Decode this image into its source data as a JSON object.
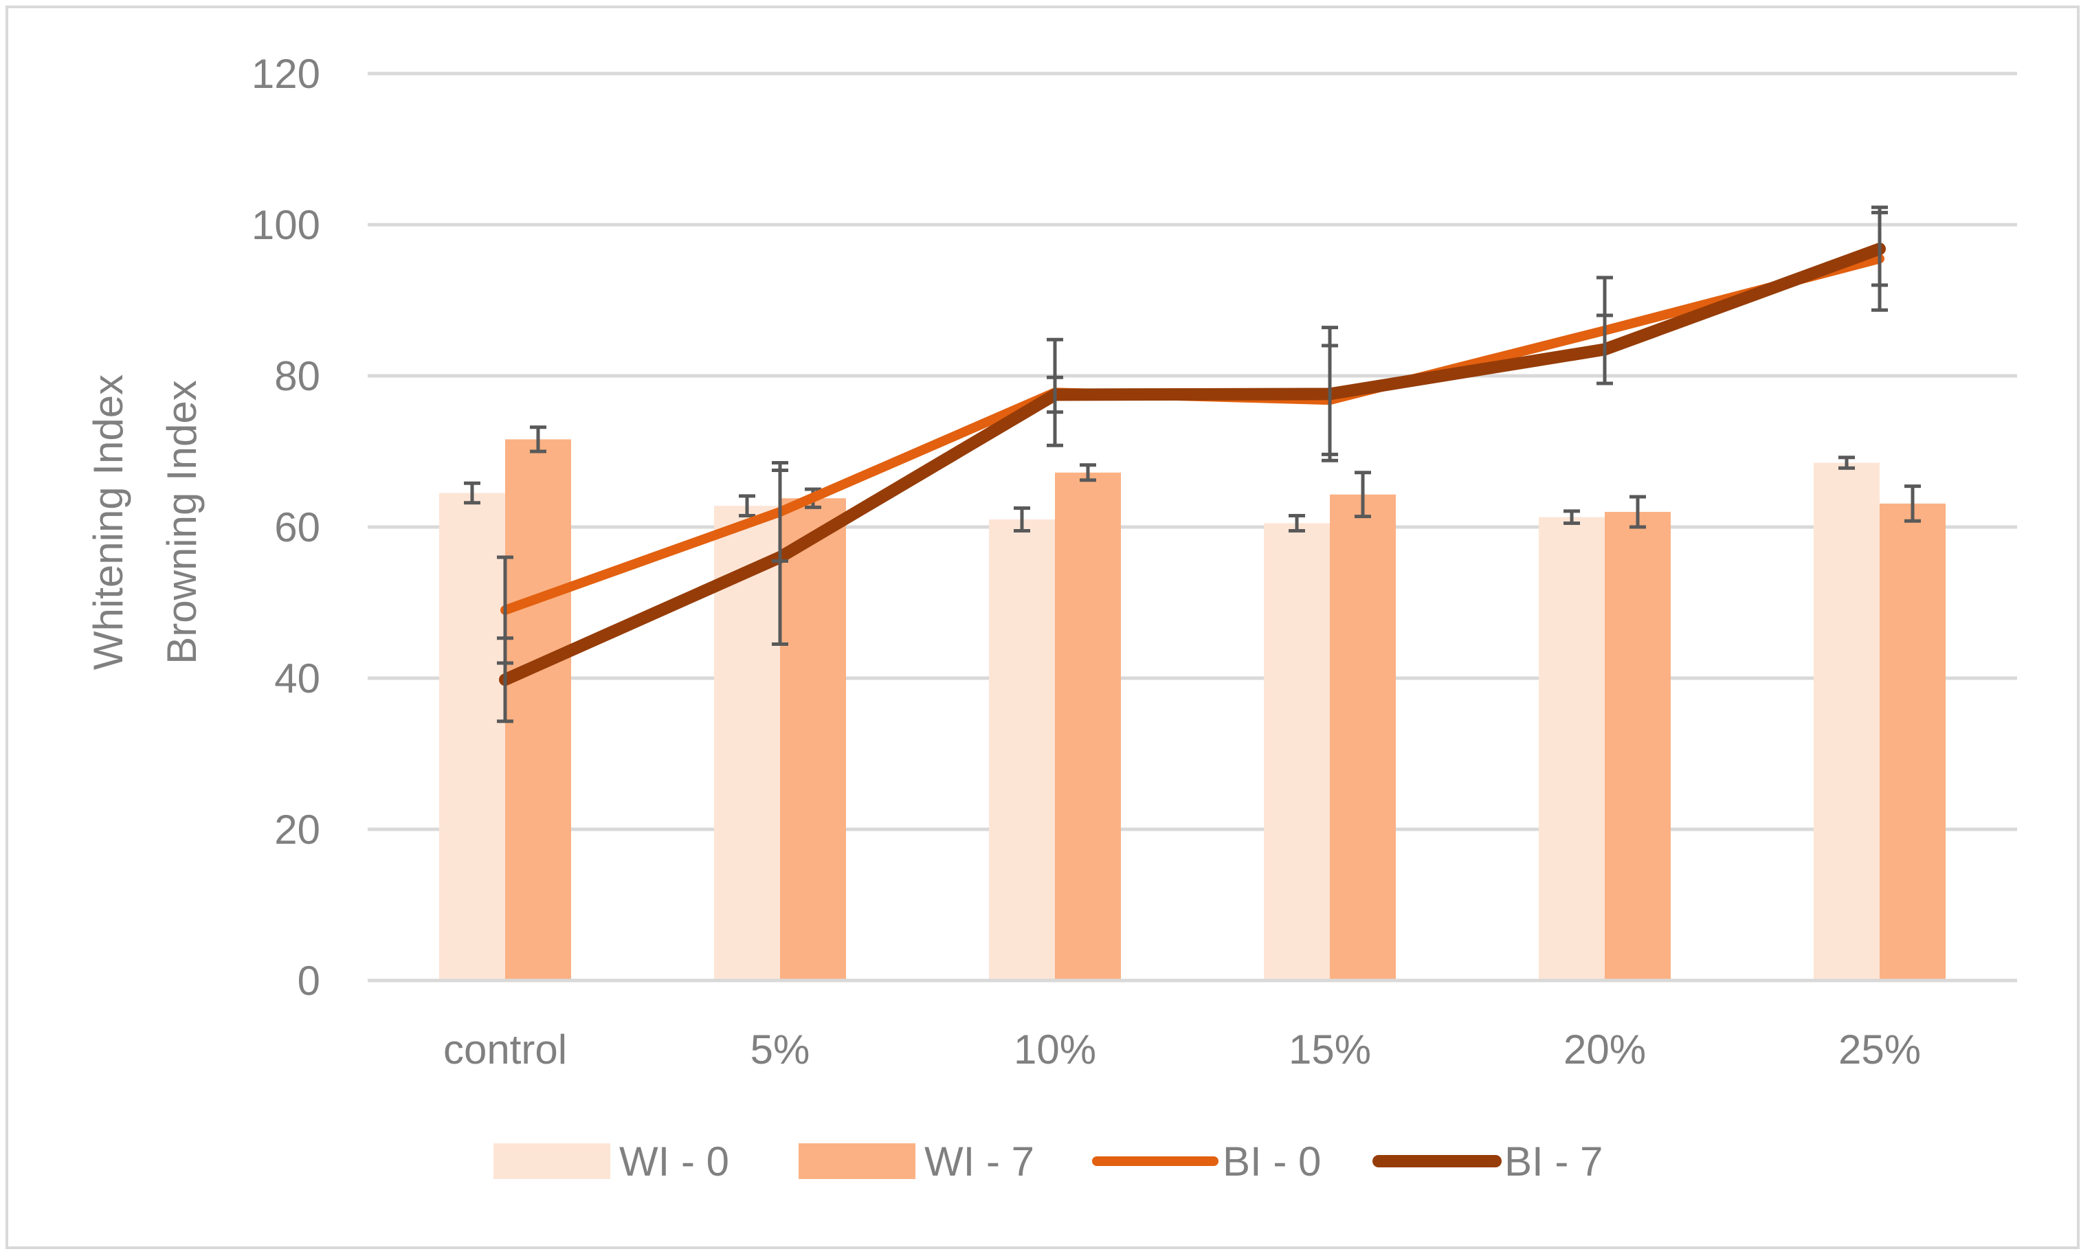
{
  "chart_data": {
    "type": "bar",
    "title": "",
    "xlabel": "",
    "ylabel": [
      "Whitening  Index",
      "Browning Index"
    ],
    "ylim": [
      0,
      120
    ],
    "yticks": [
      0,
      20,
      40,
      60,
      80,
      100,
      120
    ],
    "grid": true,
    "legend_position": "bottom",
    "categories": [
      "control",
      "5%",
      "10%",
      "15%",
      "20%",
      "25%"
    ],
    "series": [
      {
        "name": "WI - 0",
        "kind": "bar",
        "color": "#fde5d6",
        "values": [
          64.5,
          62.8,
          61.0,
          60.5,
          61.3,
          68.5
        ],
        "errors": [
          1.3,
          1.3,
          1.5,
          1.0,
          0.8,
          0.7
        ]
      },
      {
        "name": "WI - 7",
        "kind": "bar",
        "color": "#fbb183",
        "values": [
          71.6,
          63.8,
          67.2,
          64.3,
          62.0,
          63.1
        ],
        "errors": [
          1.6,
          1.2,
          1.0,
          2.9,
          2.0,
          2.3
        ]
      },
      {
        "name": "BI - 0",
        "kind": "line",
        "color": "#e2600f",
        "values": [
          49.0,
          62.0,
          77.8,
          76.8,
          86.0,
          95.5
        ],
        "errors": [
          7.0,
          6.5,
          7.0,
          7.2,
          7.0,
          6.8
        ]
      },
      {
        "name": "BI - 7",
        "kind": "line",
        "color": "#963c08",
        "values": [
          39.8,
          56.0,
          77.5,
          77.6,
          83.5,
          96.8
        ],
        "errors": [
          5.5,
          11.5,
          2.3,
          8.8,
          4.5,
          4.8
        ]
      }
    ]
  },
  "colors": {
    "grid": "#d9d9d9",
    "error_bar": "#595959",
    "text": "#808080"
  }
}
